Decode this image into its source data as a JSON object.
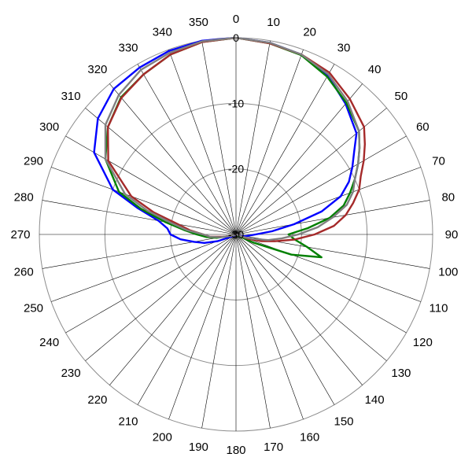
{
  "chart_data": {
    "type": "polar-line",
    "title": "",
    "angle_ticks": [
      "0",
      "10",
      "20",
      "30",
      "40",
      "50",
      "60",
      "70",
      "80",
      "90",
      "100",
      "110",
      "120",
      "130",
      "140",
      "150",
      "160",
      "170",
      "180",
      "190",
      "200",
      "210",
      "220",
      "230",
      "240",
      "250",
      "260",
      "270",
      "280",
      "290",
      "300",
      "310",
      "320",
      "330",
      "340",
      "350"
    ],
    "radial_ticks": [
      "0",
      "-10",
      "-20",
      "-30"
    ],
    "radial_range": [
      -30,
      0
    ],
    "grid": true,
    "series": [
      {
        "color": "#0000ff",
        "angles": [
          0,
          10,
          20,
          30,
          40,
          50,
          55,
          60,
          65,
          70,
          75,
          80,
          85,
          90,
          95,
          100,
          105,
          110,
          120,
          130,
          150,
          180,
          210,
          240,
          250,
          255,
          260,
          265,
          270,
          275,
          280,
          285,
          290,
          300,
          310,
          320,
          330,
          340,
          350
        ],
        "values": [
          0,
          -0.3,
          -0.8,
          -2,
          -4,
          -6,
          -8,
          -9.5,
          -11,
          -13,
          -16.5,
          -21,
          -24.5,
          -27,
          -28,
          -28.5,
          -29,
          -29.5,
          -30,
          -30,
          -30,
          -30,
          -30,
          -29.5,
          -27,
          -25,
          -23.5,
          -21.5,
          -20,
          -19.5,
          -18,
          -14.5,
          -10,
          -5,
          -2.5,
          -1,
          -0.6,
          -0.2,
          0
        ]
      },
      {
        "color": "#008000",
        "angles": [
          0,
          10,
          20,
          30,
          40,
          50,
          55,
          60,
          65,
          70,
          75,
          80,
          85,
          90,
          95,
          100,
          105,
          110,
          115,
          120,
          130,
          150,
          180,
          210,
          240,
          250,
          260,
          265,
          270,
          275,
          280,
          285,
          290,
          300,
          310,
          320,
          330,
          340,
          350
        ],
        "values": [
          0,
          -0.4,
          -0.9,
          -2.2,
          -3.8,
          -5.5,
          -7,
          -8.5,
          -10,
          -11.5,
          -13,
          -15.5,
          -19,
          -22,
          -21,
          -19,
          -16.5,
          -21,
          -27,
          -29.5,
          -30,
          -30,
          -30,
          -30,
          -30,
          -29.5,
          -27,
          -25.5,
          -24,
          -22,
          -19,
          -15,
          -11,
          -7,
          -4.5,
          -2.7,
          -1.8,
          -0.8,
          -0.2
        ]
      },
      {
        "color": "#a52a2a",
        "angles": [
          0,
          10,
          20,
          30,
          40,
          50,
          55,
          60,
          65,
          70,
          75,
          80,
          85,
          90,
          95,
          100,
          105,
          110,
          120,
          130,
          150,
          180,
          210,
          240,
          250,
          260,
          265,
          270,
          275,
          280,
          285,
          290,
          300,
          310,
          320,
          330,
          340,
          350
        ],
        "values": [
          0,
          -0.4,
          -0.8,
          -1.5,
          -3,
          -4.5,
          -6,
          -7.5,
          -9,
          -10,
          -11.5,
          -13,
          -15,
          -18,
          -21,
          -24,
          -26,
          -28,
          -30,
          -30,
          -30,
          -30,
          -30,
          -30,
          -29.5,
          -28,
          -26,
          -25,
          -23,
          -21,
          -17,
          -13,
          -7.5,
          -4.5,
          -2.8,
          -1.8,
          -0.8,
          -0.2
        ]
      },
      {
        "color": "#808080",
        "angles": [
          0,
          10,
          20,
          30,
          40,
          50,
          55,
          60,
          65,
          70,
          75,
          80,
          85,
          90,
          95,
          100,
          105,
          110,
          120,
          130,
          150,
          180,
          210,
          240,
          250,
          260,
          265,
          270,
          275,
          280,
          285,
          290,
          300,
          310,
          320,
          330,
          340,
          350
        ],
        "values": [
          0,
          -0.3,
          -0.8,
          -1.8,
          -3.5,
          -5.5,
          -7,
          -8.5,
          -10,
          -11,
          -12.5,
          -15,
          -17.5,
          -20.5,
          -23,
          -25,
          -27.5,
          -29,
          -30,
          -30,
          -30,
          -30,
          -30,
          -30,
          -29.5,
          -27.5,
          -26,
          -25,
          -22.5,
          -20,
          -16,
          -12,
          -7,
          -4,
          -2.2,
          -1,
          -0.5,
          -0.1
        ]
      }
    ]
  }
}
